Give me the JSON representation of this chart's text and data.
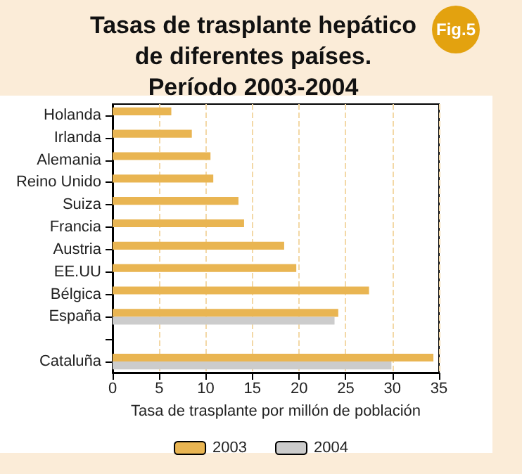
{
  "chart_data": {
    "type": "bar",
    "orientation": "horizontal",
    "title": "Tasas de trasplante hepático\nde diferentes países.\nPeríodo 2003-2004",
    "xlabel": "Tasa de trasplante por millón de población",
    "annotations": [
      "Fig.5"
    ],
    "categories": [
      "Holanda",
      "Irlanda",
      "Alemania",
      "Reino Unido",
      "Suiza",
      "Francia",
      "Austria",
      "EE.UU",
      "Bélgica",
      "España",
      null,
      "Cataluña"
    ],
    "series": [
      {
        "name": "2003",
        "color": "#e9b552",
        "values": [
          6.3,
          8.5,
          10.5,
          10.8,
          13.5,
          14.1,
          18.4,
          19.7,
          27.5,
          24.2,
          null,
          34.4
        ]
      },
      {
        "name": "2004",
        "color": "#cccccc",
        "values": [
          null,
          null,
          null,
          null,
          null,
          null,
          null,
          null,
          null,
          23.8,
          null,
          29.9
        ]
      }
    ],
    "xlim": [
      0,
      35
    ],
    "xticks": [
      0,
      5,
      10,
      15,
      20,
      25,
      30,
      35
    ],
    "grid": "x",
    "legend": "bottom"
  }
}
